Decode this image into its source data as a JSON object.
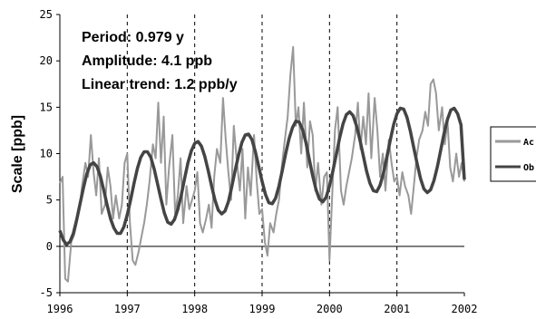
{
  "chart_data": {
    "type": "line",
    "ylabel": "Scale [ppb]",
    "xlim": [
      1996,
      2002
    ],
    "ylim": [
      -5,
      25
    ],
    "x_ticks": [
      "1996",
      "1997",
      "1998",
      "1999",
      "2000",
      "2001",
      "2002"
    ],
    "y_ticks": [
      "-5",
      "0",
      "5",
      "10",
      "15",
      "20",
      "25"
    ],
    "vertical_dashed_lines_at": [
      1997,
      1998,
      1999,
      2000,
      2001
    ],
    "annotations": [
      "Period: 0.979 y",
      "Amplitude: 4.1 ppb",
      "Linear trend: 1.2 ppb/y"
    ],
    "legend_position": "right",
    "series": [
      {
        "name": "Ac",
        "color": "#999999",
        "x": [
          1996.0,
          1996.04,
          1996.08,
          1996.12,
          1996.17,
          1996.21,
          1996.25,
          1996.29,
          1996.33,
          1996.38,
          1996.42,
          1996.46,
          1996.5,
          1996.54,
          1996.58,
          1996.62,
          1996.67,
          1996.71,
          1996.75,
          1996.79,
          1996.83,
          1996.88,
          1996.92,
          1996.96,
          1997.0,
          1997.04,
          1997.08,
          1997.12,
          1997.17,
          1997.21,
          1997.25,
          1997.29,
          1997.33,
          1997.38,
          1997.42,
          1997.46,
          1997.5,
          1997.54,
          1997.58,
          1997.62,
          1997.67,
          1997.71,
          1997.75,
          1997.79,
          1997.83,
          1997.88,
          1997.92,
          1997.96,
          1998.0,
          1998.04,
          1998.08,
          1998.12,
          1998.17,
          1998.21,
          1998.25,
          1998.29,
          1998.33,
          1998.38,
          1998.42,
          1998.46,
          1998.5,
          1998.54,
          1998.58,
          1998.62,
          1998.67,
          1998.71,
          1998.75,
          1998.79,
          1998.83,
          1998.88,
          1998.92,
          1998.96,
          1999.0,
          1999.04,
          1999.08,
          1999.12,
          1999.17,
          1999.21,
          1999.25,
          1999.29,
          1999.33,
          1999.38,
          1999.42,
          1999.46,
          1999.5,
          1999.54,
          1999.58,
          1999.62,
          1999.67,
          1999.71,
          1999.75,
          1999.79,
          1999.83,
          1999.88,
          1999.92,
          1999.96,
          2000.0,
          2000.04,
          2000.08,
          2000.12,
          2000.17,
          2000.21,
          2000.25,
          2000.29,
          2000.33,
          2000.38,
          2000.42,
          2000.46,
          2000.5,
          2000.54,
          2000.58,
          2000.62,
          2000.67,
          2000.71,
          2000.75,
          2000.79,
          2000.83,
          2000.88,
          2000.92,
          2000.96,
          2001.0,
          2001.04,
          2001.08,
          2001.12,
          2001.17,
          2001.21,
          2001.25,
          2001.29,
          2001.33,
          2001.38,
          2001.42,
          2001.46,
          2001.5,
          2001.54,
          2001.58,
          2001.62,
          2001.67,
          2001.71,
          2001.75,
          2001.79,
          2001.83,
          2001.88,
          2001.92,
          2001.96,
          2002.0
        ],
        "values": [
          6.8,
          7.5,
          -3.5,
          -3.8,
          0.5,
          1.2,
          2.5,
          4.0,
          6.5,
          9.0,
          7.5,
          12.0,
          8.0,
          5.5,
          9.5,
          3.5,
          4.5,
          8.5,
          6.5,
          3.0,
          5.5,
          3.0,
          4.5,
          9.0,
          10.0,
          2.5,
          -1.5,
          -2.0,
          -0.5,
          1.0,
          2.5,
          4.5,
          7.0,
          11.0,
          9.5,
          15.5,
          9.0,
          14.0,
          4.5,
          8.5,
          12.0,
          3.5,
          5.5,
          9.5,
          2.5,
          6.5,
          4.0,
          5.0,
          6.0,
          8.0,
          2.5,
          1.5,
          3.0,
          4.5,
          2.0,
          7.5,
          10.5,
          9.0,
          16.0,
          11.5,
          8.0,
          5.0,
          13.0,
          9.5,
          6.0,
          10.5,
          3.0,
          8.5,
          5.5,
          12.0,
          7.0,
          3.5,
          4.0,
          0.5,
          -1.0,
          2.5,
          1.5,
          3.5,
          5.0,
          8.5,
          11.0,
          14.0,
          18.5,
          21.5,
          13.0,
          15.0,
          10.0,
          15.5,
          8.5,
          13.5,
          12.0,
          6.0,
          9.0,
          4.5,
          7.5,
          8.0,
          -1.5,
          5.5,
          12.5,
          15.0,
          6.0,
          4.5,
          6.5,
          8.0,
          9.5,
          12.0,
          15.5,
          10.5,
          14.0,
          11.0,
          16.5,
          9.5,
          16.0,
          12.5,
          7.5,
          10.0,
          6.0,
          11.5,
          9.0,
          7.0,
          7.5,
          5.5,
          8.0,
          6.5,
          5.5,
          3.5,
          6.5,
          9.5,
          11.5,
          12.5,
          14.5,
          13.0,
          17.5,
          18.0,
          16.5,
          12.5,
          15.0,
          11.0,
          13.5,
          8.5,
          7.0,
          10.0,
          7.5,
          9.0,
          7.0
        ]
      },
      {
        "name": "Ob",
        "color": "#444444",
        "x": [
          1996.0,
          1996.05,
          1996.1,
          1996.15,
          1996.2,
          1996.25,
          1996.3,
          1996.35,
          1996.4,
          1996.45,
          1996.5,
          1996.55,
          1996.6,
          1996.65,
          1996.7,
          1996.75,
          1996.8,
          1996.85,
          1996.9,
          1996.95,
          1997.0,
          1997.05,
          1997.1,
          1997.15,
          1997.2,
          1997.25,
          1997.3,
          1997.35,
          1997.4,
          1997.45,
          1997.5,
          1997.55,
          1997.6,
          1997.65,
          1997.7,
          1997.75,
          1997.8,
          1997.85,
          1997.9,
          1997.95,
          1998.0,
          1998.05,
          1998.1,
          1998.15,
          1998.2,
          1998.25,
          1998.3,
          1998.35,
          1998.4,
          1998.45,
          1998.5,
          1998.55,
          1998.6,
          1998.65,
          1998.7,
          1998.75,
          1998.8,
          1998.85,
          1998.9,
          1998.95,
          1999.0,
          1999.05,
          1999.1,
          1999.15,
          1999.2,
          1999.25,
          1999.3,
          1999.35,
          1999.4,
          1999.45,
          1999.5,
          1999.55,
          1999.6,
          1999.65,
          1999.7,
          1999.75,
          1999.8,
          1999.85,
          1999.9,
          1999.95,
          2000.0,
          2000.05,
          2000.1,
          2000.15,
          2000.2,
          2000.25,
          2000.3,
          2000.35,
          2000.4,
          2000.45,
          2000.5,
          2000.55,
          2000.6,
          2000.65,
          2000.7,
          2000.75,
          2000.8,
          2000.85,
          2000.9,
          2000.95,
          2001.0,
          2001.05,
          2001.1,
          2001.15,
          2001.2,
          2001.25,
          2001.3,
          2001.35,
          2001.4,
          2001.45,
          2001.5,
          2001.55,
          2001.6,
          2001.65,
          2001.7,
          2001.75,
          2001.8,
          2001.85,
          2001.9,
          2001.95,
          2002.0
        ],
        "values": [
          1.7,
          0.7,
          0.2,
          0.5,
          1.4,
          2.9,
          4.6,
          6.3,
          7.8,
          8.8,
          9.0,
          8.6,
          7.6,
          6.1,
          4.5,
          3.0,
          2.0,
          1.4,
          1.4,
          2.1,
          3.4,
          5.0,
          6.8,
          8.4,
          9.6,
          10.2,
          10.2,
          9.6,
          8.3,
          6.7,
          5.1,
          3.6,
          2.6,
          2.4,
          2.9,
          4.0,
          5.5,
          7.3,
          9.0,
          10.3,
          11.1,
          11.3,
          10.8,
          9.7,
          8.2,
          6.5,
          5.0,
          3.9,
          3.5,
          3.8,
          4.8,
          6.4,
          8.2,
          9.8,
          11.2,
          12.0,
          12.1,
          11.5,
          10.2,
          8.6,
          7.0,
          5.6,
          4.7,
          4.6,
          5.2,
          6.5,
          8.2,
          10.0,
          11.6,
          12.8,
          13.5,
          13.4,
          12.6,
          11.2,
          9.4,
          7.6,
          6.1,
          5.1,
          4.8,
          5.3,
          6.5,
          8.1,
          9.9,
          11.7,
          13.2,
          14.2,
          14.5,
          14.1,
          13.0,
          11.5,
          9.8,
          8.1,
          6.8,
          6.0,
          5.9,
          6.6,
          7.9,
          9.6,
          11.4,
          13.1,
          14.3,
          14.9,
          14.8,
          13.9,
          12.4,
          10.6,
          8.9,
          7.3,
          6.2,
          5.8,
          6.1,
          7.1,
          8.6,
          10.4,
          12.2,
          13.7,
          14.7,
          14.9,
          14.3,
          13.1,
          7.2
        ]
      }
    ]
  }
}
